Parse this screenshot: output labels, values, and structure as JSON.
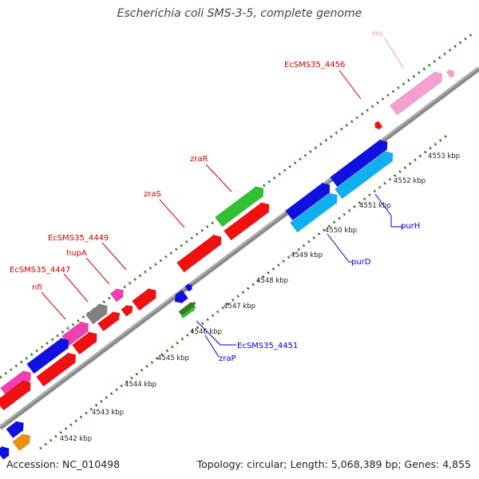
{
  "title": "Escherichia coli SMS-3-5, complete genome",
  "footer": {
    "accession": "Accession: NC_010498",
    "summary": "Topology: circular; Length: 5,068,389 bp; Genes: 4,855"
  },
  "colors": {
    "red": "#f01010",
    "blue": "#1010e0",
    "cyan": "#10b0f0",
    "green": "#30c030",
    "pink": "#f5a0d0",
    "magenta": "#f040b0",
    "gray": "#808080",
    "orange": "#f09010",
    "olive": "#2e7d1e",
    "tick_green": "#2e7d1e",
    "label_red": "#cc0000",
    "label_blue": "#0000cc",
    "label_pink": "#f090c0"
  },
  "scale_labels": [
    "4542 kbp",
    "4543 kbp",
    "4544 kbp",
    "4545 kbp",
    "4546 kbp",
    "4547 kbp",
    "4548 kbp",
    "4549 kbp",
    "4550 kbp",
    "4551 kbp",
    "4552 kbp",
    "4553 kbp"
  ],
  "gene_labels": {
    "rrs": "rrs",
    "ecsms35_4456": "EcSMS35_4456",
    "zraR": "zraR",
    "zraS": "zraS",
    "ecsms35_4449": "EcSMS35_4449",
    "hupA": "hupA",
    "ecsms35_4447": "EcSMS35_4447",
    "nfi": "nfi",
    "purH": "purH",
    "purD": "purD",
    "ecsms35_4451": "EcSMS35_4451",
    "zraP": "zraP"
  }
}
